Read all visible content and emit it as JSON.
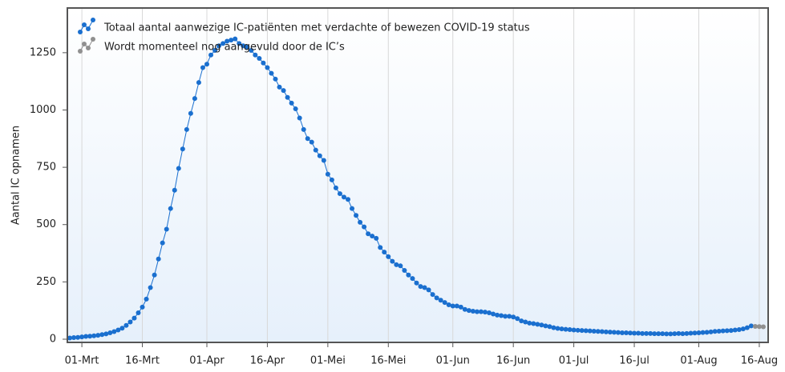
{
  "chart_data": {
    "type": "line",
    "y_label": "Aantal IC opnamen",
    "xlim": [
      -3.6,
      170.2
    ],
    "ylim": [
      -14,
      1445
    ],
    "xticks": [
      {
        "value": 0,
        "label": "01-Mrt"
      },
      {
        "value": 15,
        "label": "16-Mrt"
      },
      {
        "value": 31,
        "label": "01-Apr"
      },
      {
        "value": 46,
        "label": "16-Apr"
      },
      {
        "value": 61,
        "label": "01-Mei"
      },
      {
        "value": 76,
        "label": "16-Mei"
      },
      {
        "value": 92,
        "label": "01-Jun"
      },
      {
        "value": 107,
        "label": "16-Jun"
      },
      {
        "value": 122,
        "label": "01-Jul"
      },
      {
        "value": 137,
        "label": "16-Jul"
      },
      {
        "value": 153,
        "label": "01-Aug"
      },
      {
        "value": 168,
        "label": "16-Aug"
      }
    ],
    "yticks": [
      0,
      250,
      500,
      750,
      1000,
      1250
    ],
    "grid": true,
    "legend": "top-left",
    "series": [
      {
        "name": "Totaal aantal aanwezige IC-patiënten met verdachte of bewezen COVID-19 status",
        "color": "#1a6fcf",
        "x": [
          -3,
          -2,
          -1,
          0,
          1,
          2,
          3,
          4,
          5,
          6,
          7,
          8,
          9,
          10,
          11,
          12,
          13,
          14,
          15,
          16,
          17,
          18,
          19,
          20,
          21,
          22,
          23,
          24,
          25,
          26,
          27,
          28,
          29,
          30,
          31,
          32,
          33,
          34,
          35,
          36,
          37,
          38,
          39,
          40,
          41,
          42,
          43,
          44,
          45,
          46,
          47,
          48,
          49,
          50,
          51,
          52,
          53,
          54,
          55,
          56,
          57,
          58,
          59,
          60,
          61,
          62,
          63,
          64,
          65,
          66,
          67,
          68,
          69,
          70,
          71,
          72,
          73,
          74,
          75,
          76,
          77,
          78,
          79,
          80,
          81,
          82,
          83,
          84,
          85,
          86,
          87,
          88,
          89,
          90,
          91,
          92,
          93,
          94,
          95,
          96,
          97,
          98,
          99,
          100,
          101,
          102,
          103,
          104,
          105,
          106,
          107,
          108,
          109,
          110,
          111,
          112,
          113,
          114,
          115,
          116,
          117,
          118,
          119,
          120,
          121,
          122,
          123,
          124,
          125,
          126,
          127,
          128,
          129,
          130,
          131,
          132,
          133,
          134,
          135,
          136,
          137,
          138,
          139,
          140,
          141,
          142,
          143,
          144,
          145,
          146,
          147,
          148,
          149,
          150,
          151,
          152,
          153,
          154,
          155,
          156,
          157,
          158,
          159,
          160,
          161,
          162,
          163,
          164,
          165,
          166
        ],
        "values": [
          5,
          7,
          8,
          10,
          12,
          13,
          15,
          17,
          20,
          23,
          28,
          33,
          40,
          48,
          60,
          75,
          92,
          115,
          140,
          175,
          225,
          280,
          350,
          420,
          480,
          570,
          650,
          745,
          830,
          915,
          985,
          1050,
          1120,
          1185,
          1200,
          1240,
          1260,
          1280,
          1290,
          1300,
          1305,
          1310,
          1290,
          1280,
          1275,
          1260,
          1240,
          1225,
          1205,
          1185,
          1160,
          1135,
          1100,
          1085,
          1055,
          1030,
          1005,
          965,
          915,
          875,
          860,
          825,
          800,
          780,
          720,
          695,
          660,
          635,
          620,
          610,
          570,
          540,
          510,
          490,
          460,
          450,
          440,
          400,
          380,
          360,
          340,
          325,
          320,
          300,
          280,
          265,
          245,
          230,
          225,
          215,
          195,
          180,
          170,
          160,
          150,
          145,
          145,
          140,
          130,
          125,
          122,
          120,
          120,
          118,
          115,
          110,
          105,
          103,
          100,
          100,
          97,
          90,
          80,
          75,
          70,
          68,
          65,
          62,
          58,
          55,
          50,
          47,
          45,
          43,
          42,
          40,
          39,
          38,
          37,
          36,
          35,
          34,
          33,
          32,
          31,
          30,
          29,
          28,
          28,
          27,
          26,
          26,
          25,
          25,
          25,
          24,
          24,
          24,
          23,
          23,
          24,
          25,
          24,
          25,
          26,
          27,
          28,
          29,
          30,
          32,
          34,
          35,
          36,
          37,
          38,
          40,
          42,
          45,
          50,
          58
        ]
      },
      {
        "name": "Wordt momenteel nog aangevuld door de IC’s",
        "color": "#909090",
        "x": [
          167,
          168,
          169
        ],
        "values": [
          56,
          55,
          54
        ]
      }
    ]
  }
}
